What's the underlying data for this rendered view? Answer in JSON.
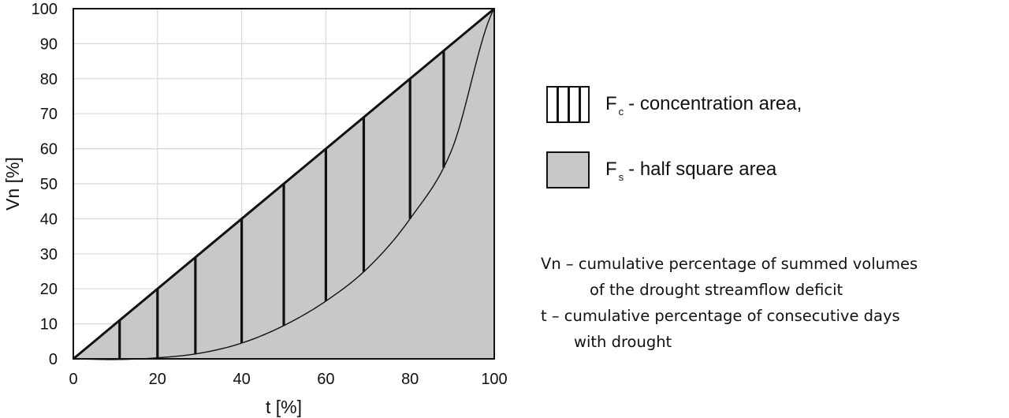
{
  "chart_data": {
    "type": "area",
    "xlabel": "t [%]",
    "ylabel": "Vn [%]",
    "xlim": [
      0,
      100
    ],
    "ylim": [
      0,
      100
    ],
    "x_ticks": [
      "0",
      "20",
      "40",
      "60",
      "80",
      "100"
    ],
    "y_ticks": [
      "0",
      "10",
      "20",
      "30",
      "40",
      "50",
      "60",
      "70",
      "80",
      "90",
      "100"
    ],
    "grid": true,
    "diagonal": {
      "x": [
        0,
        100
      ],
      "y": [
        0,
        100
      ]
    },
    "curve": {
      "x": [
        0,
        10,
        20,
        30,
        40,
        50,
        60,
        70,
        80,
        90,
        100
      ],
      "y": [
        0,
        -0.2,
        0.3,
        1.6,
        4.5,
        9.5,
        16.5,
        26,
        40,
        60,
        100
      ]
    },
    "hatch_lines_x": [
      11,
      20,
      29,
      40,
      50,
      60,
      69,
      80,
      88
    ],
    "legend_position": "right",
    "legend": [
      {
        "symbol": "F",
        "subscript": "c",
        "text": "- concentration area,"
      },
      {
        "symbol": "F",
        "subscript": "s",
        "text": "- half square area"
      }
    ],
    "colors": {
      "fill": "#c8c8c8",
      "lines": "#111111",
      "grid": "#d8d8d8"
    }
  },
  "notes": {
    "vn_line1": "Vn – cumulative percentage of summed volumes",
    "vn_line2": "of the drought streamflow deficit",
    "t_line1": "t – cumulative percentage of consecutive days",
    "t_line2": "with drought"
  }
}
